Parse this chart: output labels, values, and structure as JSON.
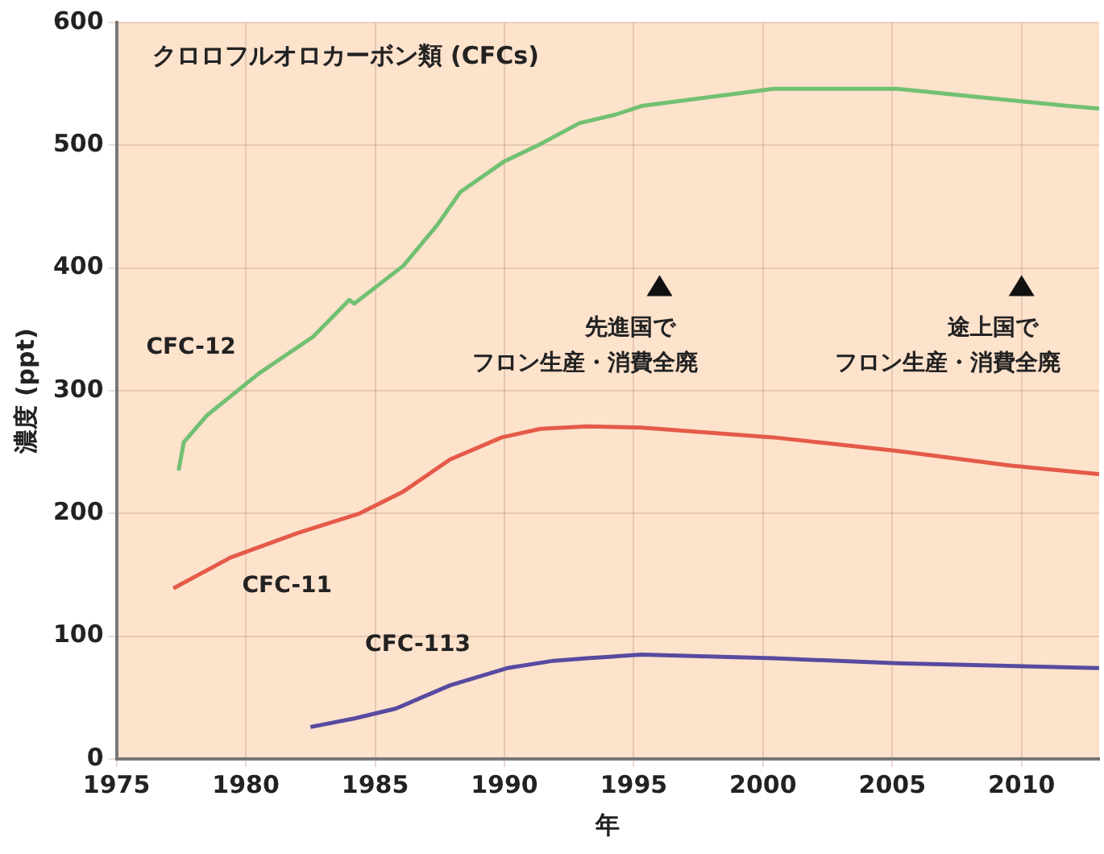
{
  "chart_data": {
    "type": "line",
    "title": "クロロフルオロカーボン類 (CFCs)",
    "xlabel": "年",
    "ylabel": "濃度 (ppt)",
    "xlim": [
      1975,
      2013
    ],
    "xticks": [
      1975,
      1980,
      1985,
      1990,
      1995,
      2000,
      2005,
      2010
    ],
    "ylim": [
      0,
      600
    ],
    "yticks": [
      0,
      100,
      200,
      300,
      400,
      500,
      600
    ],
    "grid": true,
    "legend": false,
    "marker": "none",
    "line_style": "solid",
    "series": [
      {
        "name": "CFC-12",
        "color": "#72c072",
        "x": [
          1977.4,
          1977.6,
          1978.5,
          1980.5,
          1982.6,
          1984.0,
          1984.2,
          1986.1,
          1987.4,
          1988.3,
          1990.0,
          1991.3,
          1992.9,
          1994.3,
          1995.3,
          2000.4,
          2005.2,
          2008.5,
          2011.8,
          2013
        ],
        "values": [
          235,
          258,
          280,
          314,
          344,
          374,
          371,
          402,
          435,
          462,
          487,
          500,
          518,
          525,
          532,
          546,
          546,
          539,
          532,
          530
        ]
      },
      {
        "name": "CFC-11",
        "color": "#e55a48",
        "x": [
          1977.2,
          1979.4,
          1982.0,
          1984.4,
          1986.1,
          1987.9,
          1989.9,
          1991.4,
          1993.2,
          1995.3,
          2000.4,
          2005.2,
          2009.6,
          2013
        ],
        "values": [
          139,
          164,
          184,
          200,
          218,
          244,
          262,
          269,
          271,
          270,
          262,
          251,
          239,
          232
        ]
      },
      {
        "name": "CFC-113",
        "color": "#584aa0",
        "x": [
          1982.5,
          1984.2,
          1985.8,
          1987.9,
          1990.1,
          1991.9,
          1993.2,
          1995.3,
          2000.4,
          2005.2,
          2013
        ],
        "values": [
          26,
          33,
          41,
          60,
          74,
          80,
          82,
          85,
          82,
          78,
          74
        ]
      }
    ],
    "annotations": [
      {
        "text": "先進国でフロン生産・消費全廃",
        "x": 1996,
        "y": 385
      },
      {
        "text": "途上国でフロン生産・消費全廃",
        "x": 2010,
        "y": 385
      }
    ]
  }
}
